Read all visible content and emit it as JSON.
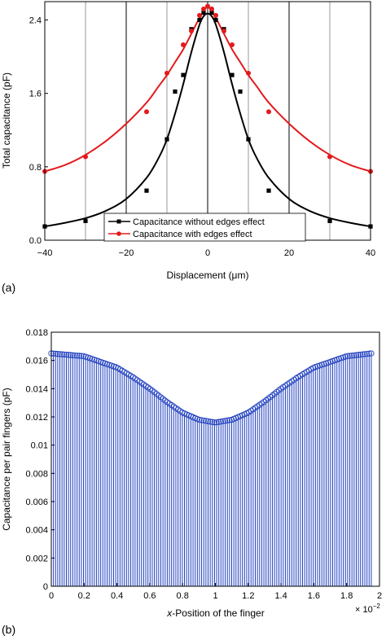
{
  "chart_data": [
    {
      "type": "line",
      "panel_label": "(a)",
      "xlabel": "Displacement (μm)",
      "ylabel": "Total capacitance (pF)",
      "xlim": [
        -40,
        40
      ],
      "ylim": [
        0,
        2.6
      ],
      "xticks": [
        "−40",
        "−20",
        "0",
        "20",
        "40"
      ],
      "yticks": [
        "0.0",
        "0.8",
        "1.6",
        "2.4"
      ],
      "vertical_lines": [
        -30,
        -20,
        -10,
        0,
        10,
        20,
        30
      ],
      "legend_position": "bottom-center",
      "series": [
        {
          "name": "Capacitance without edges effect",
          "color": "#000000",
          "marker": "square",
          "points": {
            "x": [
              -40,
              -30,
              -15,
              -10,
              -8,
              -6,
              -4,
              -2,
              -1,
              1,
              2,
              4,
              6,
              8,
              10,
              15,
              30,
              40
            ],
            "y": [
              0.15,
              0.21,
              0.54,
              1.1,
              1.62,
              1.8,
              2.3,
              2.4,
              2.48,
              2.48,
              2.4,
              2.3,
              1.8,
              1.62,
              1.1,
              0.54,
              0.21,
              0.15
            ]
          },
          "curve": {
            "x": [
              -40,
              -35,
              -30,
              -25,
              -20,
              -15,
              -12,
              -10,
              -8,
              -6,
              -4,
              -2,
              -1,
              0,
              1,
              2,
              4,
              6,
              8,
              10,
              12,
              15,
              20,
              25,
              30,
              35,
              40
            ],
            "y": [
              0.15,
              0.19,
              0.24,
              0.32,
              0.45,
              0.68,
              0.9,
              1.1,
              1.38,
              1.7,
              2.05,
              2.35,
              2.44,
              2.47,
              2.44,
              2.35,
              2.05,
              1.7,
              1.38,
              1.1,
              0.9,
              0.68,
              0.45,
              0.32,
              0.24,
              0.19,
              0.15
            ]
          }
        },
        {
          "name": "Capacitance with edges effect",
          "color": "#e31a1c",
          "marker": "circle",
          "points": {
            "x": [
              -40,
              -30,
              -15,
              -10,
              -6,
              -4,
              -2,
              -1,
              0,
              1,
              2,
              4,
              6,
              10,
              15,
              30,
              40
            ],
            "y": [
              0.75,
              0.91,
              1.4,
              1.82,
              2.13,
              2.28,
              2.45,
              2.52,
              2.55,
              2.52,
              2.45,
              2.28,
              2.13,
              1.82,
              1.4,
              0.91,
              0.75
            ]
          },
          "curve": {
            "x": [
              -40,
              -35,
              -30,
              -25,
              -20,
              -15,
              -12,
              -10,
              -8,
              -6,
              -4,
              -2,
              0,
              2,
              4,
              6,
              8,
              10,
              12,
              15,
              20,
              25,
              30,
              35,
              40
            ],
            "y": [
              0.75,
              0.82,
              0.93,
              1.08,
              1.27,
              1.5,
              1.68,
              1.8,
              1.94,
              2.08,
              2.25,
              2.42,
              2.54,
              2.42,
              2.25,
              2.08,
              1.94,
              1.8,
              1.68,
              1.5,
              1.27,
              1.08,
              0.93,
              0.82,
              0.75
            ]
          }
        }
      ]
    },
    {
      "type": "bar",
      "style": "stem",
      "panel_label": "(b)",
      "xlabel_italic": "x",
      "xlabel_rest": "-Position of the finger",
      "ylabel": "Capacitance per pair fingers (pF)",
      "x_multiplier_base": "× 10",
      "x_multiplier_exp": "−2",
      "xlim": [
        0,
        2
      ],
      "ylim": [
        0,
        0.018
      ],
      "xticks": [
        "0",
        "0.2",
        "0.4",
        "0.6",
        "0.8",
        "1",
        "1.2",
        "1.4",
        "1.6",
        "1.8",
        "2"
      ],
      "yticks": [
        "0",
        "0.002",
        "0.004",
        "0.006",
        "0.008",
        "0.01",
        "0.012",
        "0.014",
        "0.016",
        "0.018"
      ],
      "color": "#1f3fbf",
      "stem_count": 150,
      "profile": {
        "x": [
          0,
          0.2,
          0.4,
          0.5,
          0.6,
          0.7,
          0.8,
          0.9,
          1.0,
          1.1,
          1.2,
          1.3,
          1.4,
          1.5,
          1.6,
          1.8,
          1.95
        ],
        "y": [
          0.0165,
          0.0163,
          0.0155,
          0.0148,
          0.014,
          0.0131,
          0.0123,
          0.0118,
          0.0116,
          0.0118,
          0.0123,
          0.0131,
          0.014,
          0.0148,
          0.0155,
          0.0163,
          0.0165
        ]
      }
    }
  ]
}
